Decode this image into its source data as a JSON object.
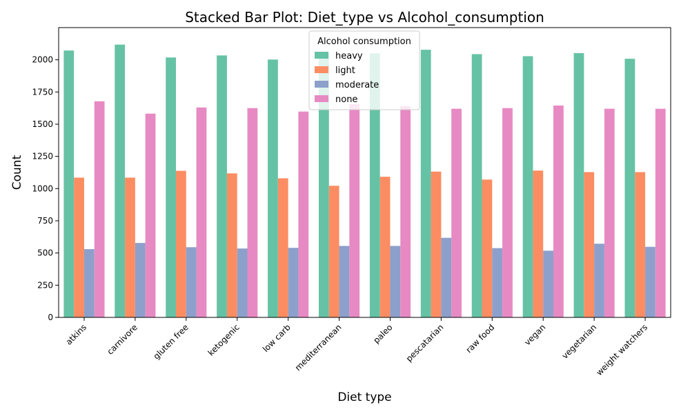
{
  "chart_data": {
    "type": "bar",
    "title": "Stacked Bar Plot: Diet_type vs Alcohol_consumption",
    "xlabel": "Diet type",
    "ylabel": "Count",
    "ylim": [
      0,
      2250
    ],
    "yticks": [
      0,
      250,
      500,
      750,
      1000,
      1250,
      1500,
      1750,
      2000
    ],
    "grid": false,
    "legend": {
      "title": "Alcohol consumption",
      "placement": "top-center"
    },
    "categories": [
      "atkins",
      "carnivore",
      "gluten free",
      "ketogenic",
      "low carb",
      "mediterranean",
      "paleo",
      "pescatarian",
      "raw food",
      "vegan",
      "vegetarian",
      "weight watchers"
    ],
    "series": [
      {
        "name": "heavy",
        "color": "#66c2a5",
        "values": [
          2072,
          2118,
          2018,
          2034,
          2002,
          2048,
          2050,
          2078,
          2044,
          2028,
          2052,
          2008
        ]
      },
      {
        "name": "light",
        "color": "#fc8d62",
        "values": [
          1085,
          1085,
          1138,
          1118,
          1080,
          1022,
          1092,
          1132,
          1070,
          1140,
          1128,
          1128
        ]
      },
      {
        "name": "moderate",
        "color": "#8da0cb",
        "values": [
          530,
          578,
          545,
          535,
          540,
          555,
          555,
          618,
          538,
          518,
          572,
          548
        ]
      },
      {
        "name": "none",
        "color": "#e78ac3",
        "values": [
          1678,
          1582,
          1630,
          1625,
          1598,
          1655,
          1640,
          1620,
          1625,
          1645,
          1620,
          1620
        ]
      }
    ]
  }
}
